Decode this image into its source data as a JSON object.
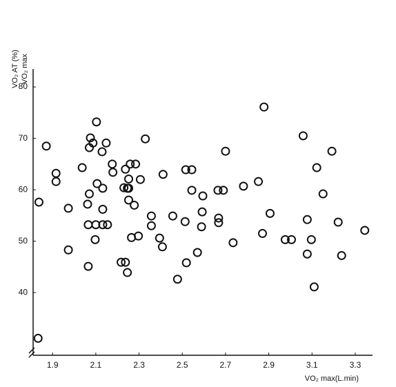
{
  "chart_data": {
    "type": "scatter",
    "y_label_top": "VO₂ AT (%)",
    "y_label_bottom": "VO₂ max",
    "x_label": "VO₂  max(L.min)",
    "x": [
      1.837,
      1.833,
      1.871,
      1.916,
      1.916,
      1.973,
      1.973,
      2.037,
      2.075,
      2.07,
      2.087,
      2.103,
      2.07,
      2.062,
      2.065,
      2.065,
      2.1,
      2.097,
      2.106,
      2.129,
      2.132,
      2.132,
      2.132,
      2.154,
      2.148,
      2.176,
      2.179,
      2.23,
      2.237,
      2.246,
      2.259,
      2.284,
      2.252,
      2.252,
      2.252,
      2.278,
      2.265,
      2.297,
      2.306,
      2.329,
      2.217,
      2.237,
      2.246,
      2.357,
      2.357,
      2.395,
      2.408,
      2.411,
      2.456,
      2.478,
      2.513,
      2.516,
      2.544,
      2.544,
      2.519,
      2.57,
      2.595,
      2.592,
      2.589,
      2.665,
      2.69,
      2.668,
      2.668,
      2.7,
      2.735,
      2.783,
      2.852,
      2.878,
      2.871,
      2.906,
      2.976,
      3.005,
      3.059,
      3.078,
      3.078,
      3.097,
      3.11,
      3.122,
      3.151,
      3.192,
      3.221,
      3.237,
      3.344
    ],
    "values": [
      57.6,
      31.1,
      68.5,
      63.2,
      61.6,
      56.4,
      48.3,
      64.3,
      70.1,
      68.2,
      69.1,
      73.2,
      59.2,
      57.2,
      53.2,
      45.1,
      53.2,
      50.3,
      61.2,
      67.4,
      60.3,
      56.2,
      53.2,
      53.2,
      69.1,
      65.0,
      63.4,
      60.4,
      64.0,
      60.3,
      65.0,
      65.0,
      62.1,
      60.3,
      58.0,
      57.0,
      50.7,
      51.0,
      62.0,
      69.9,
      45.9,
      45.9,
      43.9,
      54.9,
      53.0,
      50.6,
      48.9,
      63.0,
      54.9,
      42.6,
      53.8,
      63.9,
      63.9,
      59.9,
      45.8,
      47.8,
      58.8,
      55.7,
      52.8,
      59.9,
      59.9,
      54.5,
      53.6,
      67.5,
      49.7,
      60.7,
      61.6,
      76.1,
      51.5,
      55.4,
      50.3,
      50.3,
      70.5,
      54.2,
      47.5,
      50.3,
      41.1,
      64.3,
      59.2,
      67.5,
      53.7,
      47.2,
      52.1
    ],
    "color": "#111111",
    "xlim": [
      1.81,
      3.38
    ],
    "ylim": [
      27.8,
      83.5
    ],
    "xticks": [
      1.9,
      2.1,
      2.3,
      2.5,
      2.7,
      2.9,
      3.1,
      3.3
    ],
    "yticks": [
      40,
      50,
      60,
      70,
      80
    ],
    "grid": false
  }
}
